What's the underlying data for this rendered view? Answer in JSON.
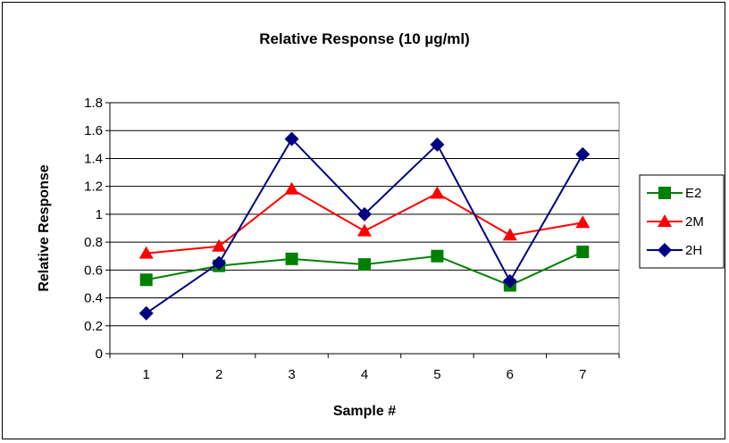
{
  "chart_data": {
    "type": "line",
    "title": "Relative Response (10 µg/ml)",
    "xlabel": "Sample #",
    "ylabel": "Relative Response",
    "categories": [
      "1",
      "2",
      "3",
      "4",
      "5",
      "6",
      "7"
    ],
    "yticks": [
      "0",
      "0.2",
      "0.4",
      "0.6",
      "0.8",
      "1",
      "1.2",
      "1.4",
      "1.6",
      "1.8"
    ],
    "ylim": [
      0,
      1.8
    ],
    "grid": "horizontal",
    "legend_position": "right",
    "series": [
      {
        "name": "E2",
        "color": "#008000",
        "marker": "square",
        "values": [
          0.53,
          0.63,
          0.68,
          0.64,
          0.7,
          0.49,
          0.73
        ]
      },
      {
        "name": "2M",
        "color": "#ff0000",
        "marker": "triangle",
        "values": [
          0.72,
          0.77,
          1.18,
          0.88,
          1.15,
          0.85,
          0.94
        ]
      },
      {
        "name": "2H",
        "color": "#000080",
        "marker": "diamond",
        "values": [
          0.29,
          0.65,
          1.54,
          1.0,
          1.5,
          0.52,
          1.43
        ]
      }
    ]
  }
}
